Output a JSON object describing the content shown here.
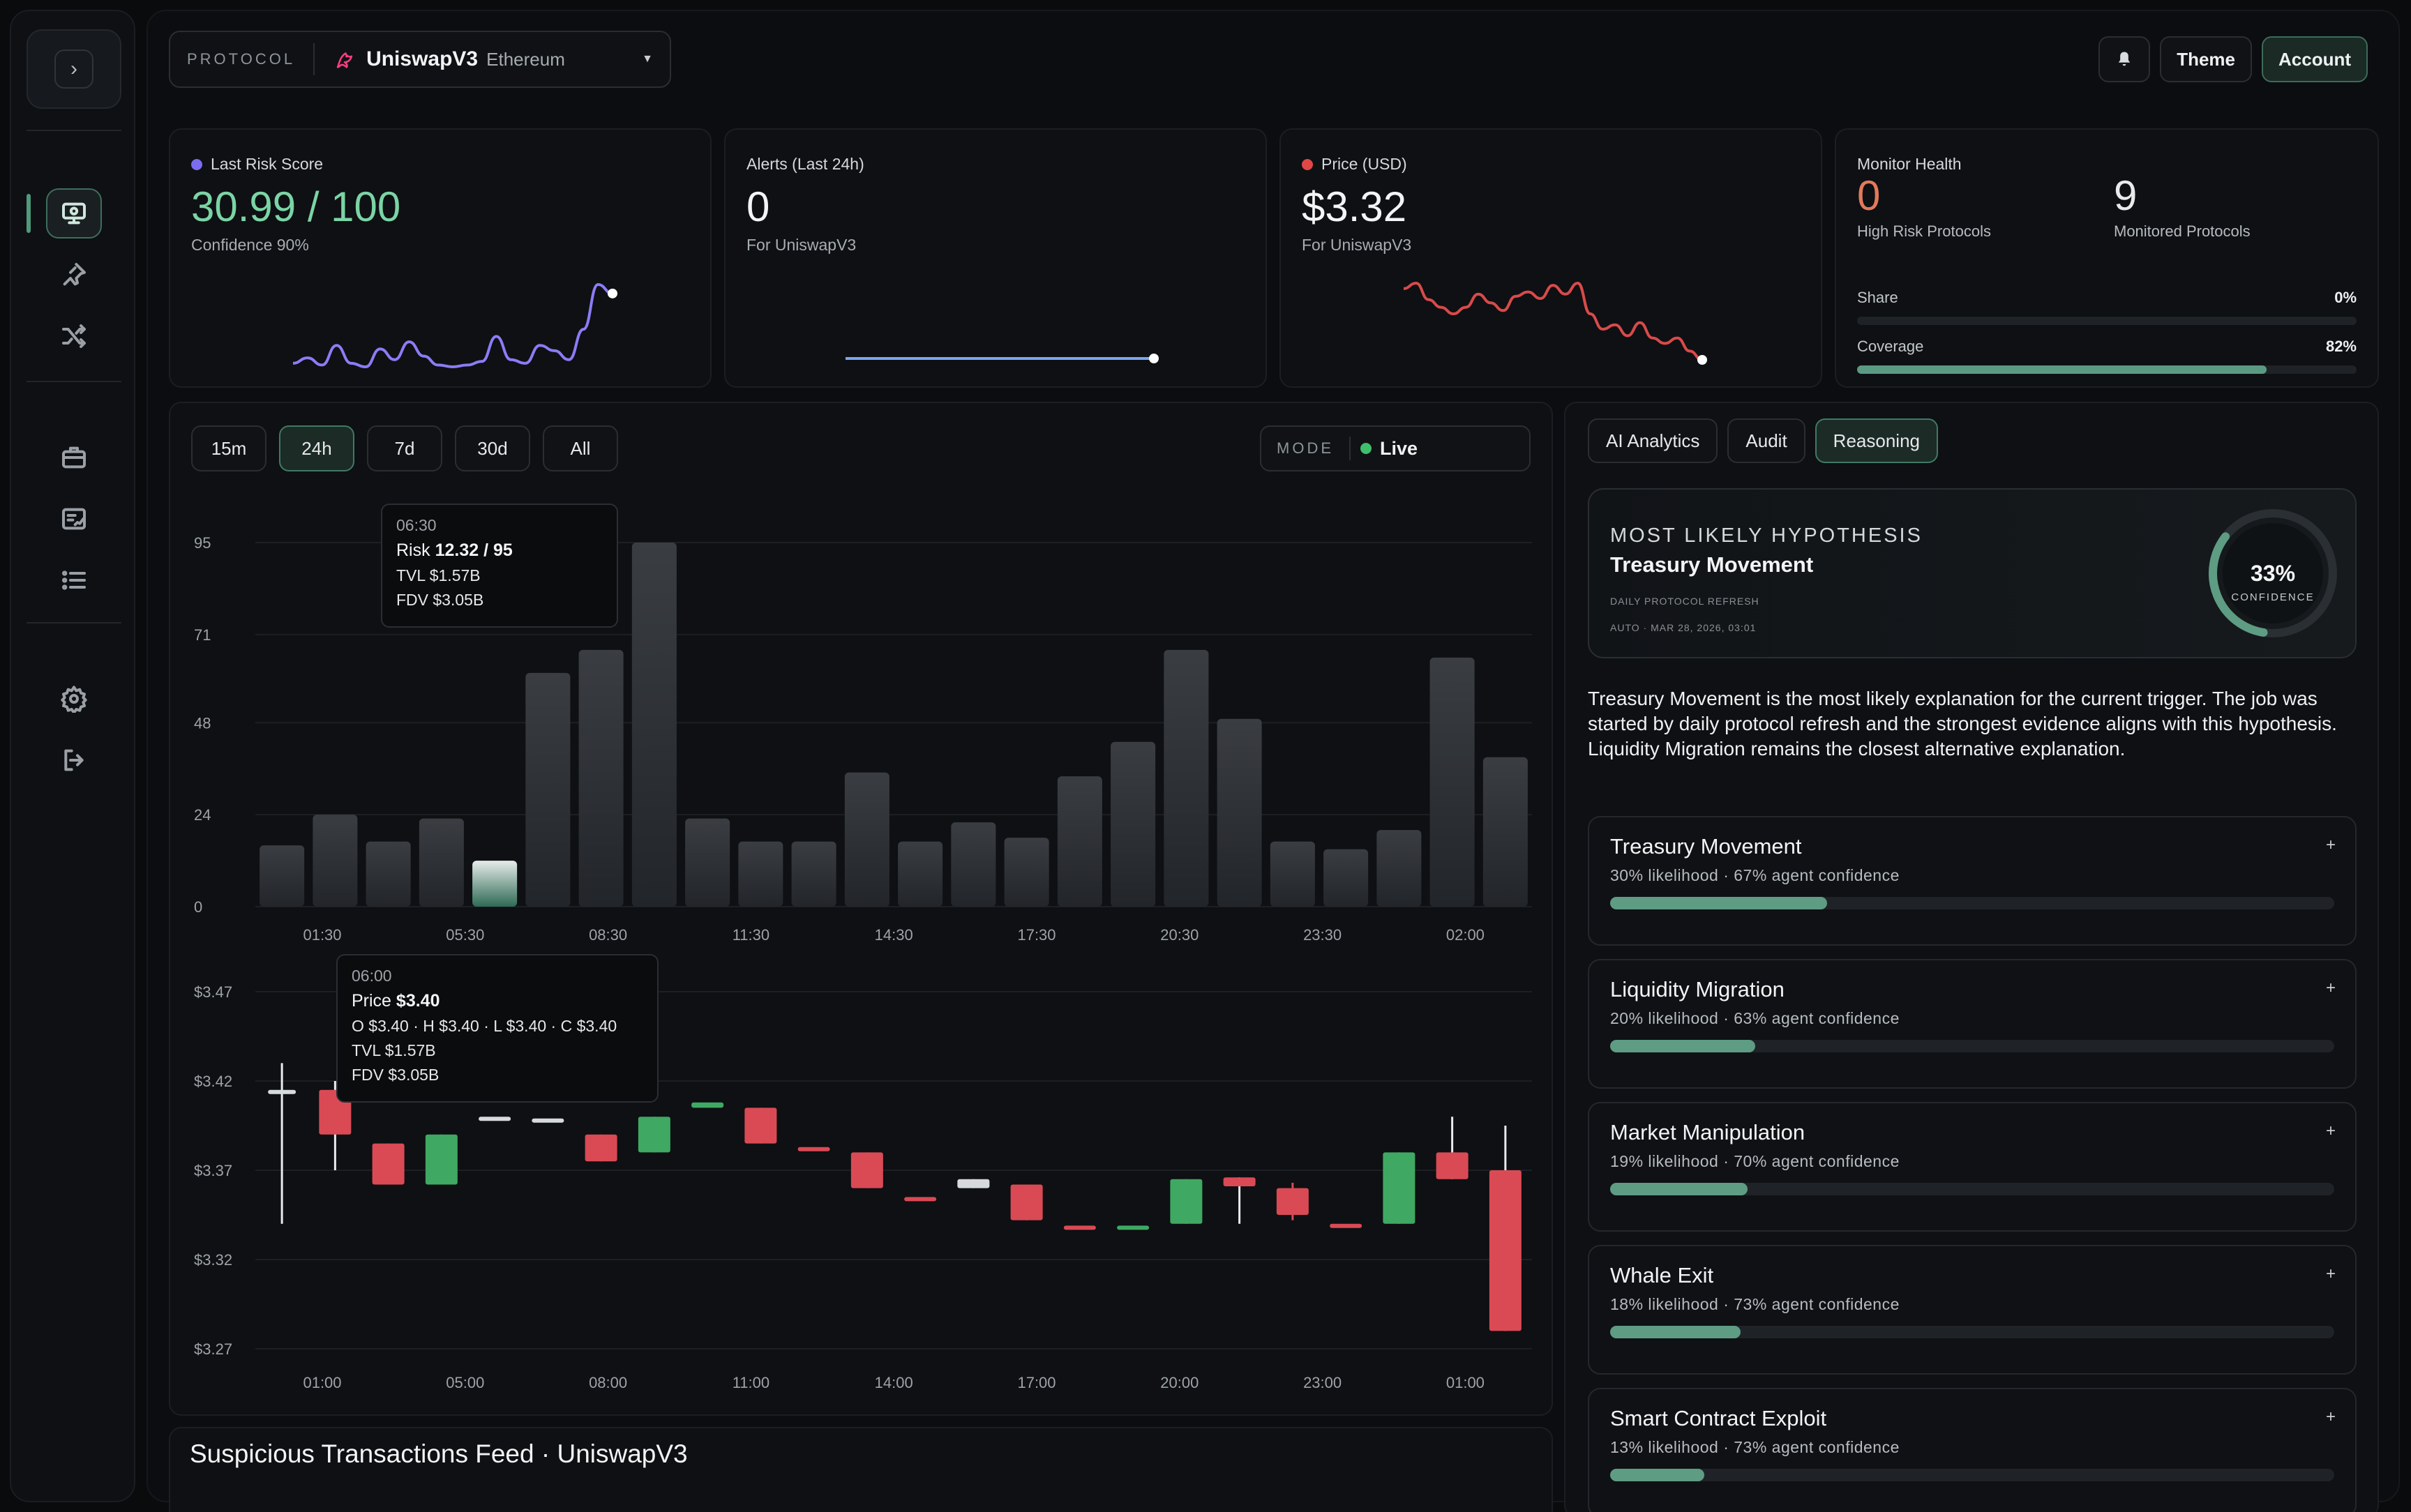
{
  "protocol": {
    "label": "PROTOCOL",
    "name": "UniswapV3",
    "network": "Ethereum"
  },
  "topbar": {
    "theme_label": "Theme",
    "account_label": "Account"
  },
  "kpis": {
    "risk": {
      "label": "Last Risk Score",
      "value": "30.99 / 100",
      "sub": "Confidence 90%",
      "dot_color": "#7c6cf0",
      "line_color": "#8b7cf6",
      "series": [
        10,
        16,
        8,
        30,
        10,
        6,
        26,
        14,
        34,
        18,
        8,
        6,
        8,
        12,
        40,
        14,
        10,
        30,
        24,
        14,
        48,
        98,
        88
      ]
    },
    "alerts": {
      "label": "Alerts (Last 24h)",
      "value": "0",
      "sub": "For UniswapV3",
      "line_color": "#7aa7f0"
    },
    "price": {
      "label": "Price (USD)",
      "value": "$3.32",
      "sub": "For UniswapV3",
      "dot_color": "#e04848",
      "line_color": "#d94a4a",
      "series": [
        3.395,
        3.4,
        3.385,
        3.378,
        3.372,
        3.378,
        3.39,
        3.382,
        3.375,
        3.388,
        3.392,
        3.386,
        3.398,
        3.39,
        3.4,
        3.372,
        3.358,
        3.362,
        3.352,
        3.364,
        3.35,
        3.345,
        3.35,
        3.338,
        3.33
      ]
    },
    "monitor": {
      "label": "Monitor Health",
      "high_risk_value": "0",
      "high_risk_label": "High Risk Protocols",
      "monitored_value": "9",
      "monitored_label": "Monitored Protocols",
      "share_label": "Share",
      "share_value": "0%",
      "share_fraction": 0,
      "coverage_label": "Coverage",
      "coverage_value": "82%",
      "coverage_fraction": 0.82,
      "accent_color": "#e27a5a"
    }
  },
  "ranges": [
    "15m",
    "24h",
    "7d",
    "30d",
    "All"
  ],
  "active_range": "24h",
  "mode": {
    "label": "MODE",
    "value": "Live",
    "dot_color": "#3fbf6b"
  },
  "risk_tooltip": {
    "time": "06:30",
    "risk_prefix": "Risk",
    "risk_value": "12.32 / 95",
    "tvl": "TVL $1.57B",
    "fdv": "FDV $3.05B"
  },
  "price_tooltip": {
    "time": "06:00",
    "price_prefix": "Price",
    "price_value": "$3.40",
    "ohlc": "O $3.40 · H $3.40 · L $3.40 · C $3.40",
    "tvl": "TVL $1.57B",
    "fdv": "FDV $3.05B"
  },
  "chart_data": [
    {
      "type": "bar",
      "title": "",
      "ylim": [
        0,
        95
      ],
      "y_ticks": [
        "95",
        "71",
        "48",
        "24",
        "0"
      ],
      "x_tick_labels": [
        "01:30",
        "05:30",
        "08:30",
        "11:30",
        "14:30",
        "17:30",
        "20:30",
        "23:30",
        "02:00"
      ],
      "values": [
        16,
        24,
        17,
        23,
        12,
        61,
        67,
        95,
        23,
        17,
        17,
        35,
        17,
        22,
        18,
        34,
        43,
        67,
        49,
        17,
        15,
        20,
        65,
        39
      ],
      "highlight_index": 4
    },
    {
      "type": "candlestick",
      "title": "",
      "ylim": [
        3.27,
        3.47
      ],
      "y_ticks": [
        "$3.47",
        "$3.42",
        "$3.37",
        "$3.32",
        "$3.27"
      ],
      "x_tick_labels": [
        "01:00",
        "05:00",
        "08:00",
        "11:00",
        "14:00",
        "17:00",
        "20:00",
        "23:00",
        "01:00"
      ],
      "up_color": "#3fa862",
      "down_color": "#d94a55",
      "candles": [
        {
          "o": 3.415,
          "h": 3.43,
          "l": 3.34,
          "c": 3.415
        },
        {
          "o": 3.415,
          "h": 3.42,
          "l": 3.37,
          "c": 3.39
        },
        {
          "o": 3.385,
          "h": 3.385,
          "l": 3.362,
          "c": 3.362
        },
        {
          "o": 3.362,
          "h": 3.39,
          "l": 3.362,
          "c": 3.39
        },
        {
          "o": 3.4,
          "h": 3.4,
          "l": 3.4,
          "c": 3.4
        },
        {
          "o": 3.399,
          "h": 3.399,
          "l": 3.399,
          "c": 3.399
        },
        {
          "o": 3.39,
          "h": 3.39,
          "l": 3.375,
          "c": 3.375
        },
        {
          "o": 3.38,
          "h": 3.4,
          "l": 3.38,
          "c": 3.4
        },
        {
          "o": 3.405,
          "h": 3.408,
          "l": 3.405,
          "c": 3.408
        },
        {
          "o": 3.405,
          "h": 3.405,
          "l": 3.385,
          "c": 3.385
        },
        {
          "o": 3.383,
          "h": 3.383,
          "l": 3.381,
          "c": 3.381
        },
        {
          "o": 3.38,
          "h": 3.38,
          "l": 3.36,
          "c": 3.36
        },
        {
          "o": 3.355,
          "h": 3.355,
          "l": 3.353,
          "c": 3.353
        },
        {
          "o": 3.36,
          "h": 3.365,
          "l": 3.36,
          "c": 3.365
        },
        {
          "o": 3.362,
          "h": 3.362,
          "l": 3.342,
          "c": 3.342
        },
        {
          "o": 3.339,
          "h": 3.339,
          "l": 3.337,
          "c": 3.337
        },
        {
          "o": 3.337,
          "h": 3.339,
          "l": 3.337,
          "c": 3.339
        },
        {
          "o": 3.34,
          "h": 3.365,
          "l": 3.34,
          "c": 3.365
        },
        {
          "o": 3.366,
          "h": 3.366,
          "l": 3.34,
          "c": 3.361
        },
        {
          "o": 3.36,
          "h": 3.363,
          "l": 3.342,
          "c": 3.345
        },
        {
          "o": 3.34,
          "h": 3.34,
          "l": 3.338,
          "c": 3.338
        },
        {
          "o": 3.34,
          "h": 3.38,
          "l": 3.34,
          "c": 3.38
        },
        {
          "o": 3.38,
          "h": 3.4,
          "l": 3.365,
          "c": 3.365
        },
        {
          "o": 3.37,
          "h": 3.395,
          "l": 3.28,
          "c": 3.28
        }
      ]
    }
  ],
  "feed": {
    "title": "Suspicious Transactions Feed · UniswapV3"
  },
  "tabs": [
    "AI Analytics",
    "Audit",
    "Reasoning"
  ],
  "active_tab": "Reasoning",
  "hypothesis": {
    "kicker": "MOST LIKELY HYPOTHESIS",
    "name": "Treasury Movement",
    "trigger": "DAILY PROTOCOL REFRESH",
    "meta": "AUTO · MAR 28, 2026, 03:01",
    "confidence_value": "33%",
    "confidence_label": "CONFIDENCE",
    "confidence_fraction": 0.33
  },
  "explanation": "Treasury Movement is the most likely explanation for the current trigger. The job was started by daily protocol refresh and the strongest evidence aligns with this hypothesis. Liquidity Migration remains the closest alternative explanation.",
  "hypotheses": [
    {
      "name": "Treasury Movement",
      "stats": "30% likelihood · 67% agent confidence",
      "likelihood": 0.3
    },
    {
      "name": "Liquidity Migration",
      "stats": "20% likelihood · 63% agent confidence",
      "likelihood": 0.2
    },
    {
      "name": "Market Manipulation",
      "stats": "19% likelihood · 70% agent confidence",
      "likelihood": 0.19
    },
    {
      "name": "Whale Exit",
      "stats": "18% likelihood · 73% agent confidence",
      "likelihood": 0.18
    },
    {
      "name": "Smart Contract Exploit",
      "stats": "13% likelihood · 73% agent confidence",
      "likelihood": 0.13
    }
  ]
}
